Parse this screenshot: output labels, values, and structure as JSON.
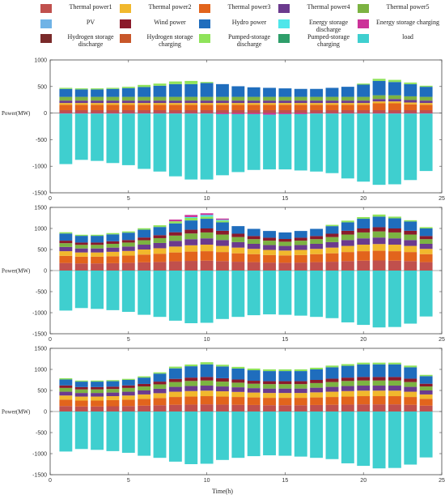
{
  "legend": [
    {
      "label": "Thermal power1",
      "color": "#c0504d"
    },
    {
      "label": "Thermal power2",
      "color": "#f1b82d"
    },
    {
      "label": "Thermal power3",
      "color": "#e2641c"
    },
    {
      "label": "Thermal power4",
      "color": "#6b3a8e"
    },
    {
      "label": "Thermal power5",
      "color": "#7cb342"
    },
    {
      "label": "PV",
      "color": "#6fb3e6"
    },
    {
      "label": "Wind power",
      "color": "#8b1a2b"
    },
    {
      "label": "Hydro power",
      "color": "#1f6dbd"
    },
    {
      "label": "Energy storage discharge",
      "color": "#4ee6ea"
    },
    {
      "label": "Energy storage charging",
      "color": "#cc3399"
    },
    {
      "label": "Hydrogen storage discharge",
      "color": "#7a2a2a"
    },
    {
      "label": "Hydrogen storage charging",
      "color": "#c8572a"
    },
    {
      "label": "Pumped-storage discharge",
      "color": "#8fe35a"
    },
    {
      "label": "Pumped-storage charging",
      "color": "#2e9e6a"
    },
    {
      "label": "load",
      "color": "#3fcfcf"
    }
  ],
  "xlabel": "Time(h)",
  "chart_data": [
    {
      "type": "bar",
      "title": "",
      "ylabel": "Power(MW)",
      "xlabel": "",
      "ylim": [
        -1500,
        1000
      ],
      "yticks": [
        -1500,
        -1000,
        -500,
        0,
        500,
        1000
      ],
      "xlim": [
        0,
        25
      ],
      "xticks": [
        0,
        5,
        10,
        15,
        20,
        25
      ],
      "hours": [
        1,
        2,
        3,
        4,
        5,
        6,
        7,
        8,
        9,
        10,
        11,
        12,
        13,
        14,
        15,
        16,
        17,
        18,
        19,
        20,
        21,
        22,
        23,
        24
      ],
      "series": [
        {
          "name": "Thermal power1",
          "values": [
            55,
            55,
            55,
            55,
            55,
            55,
            55,
            55,
            55,
            55,
            55,
            55,
            55,
            55,
            55,
            55,
            55,
            55,
            55,
            55,
            55,
            55,
            55,
            55
          ]
        },
        {
          "name": "Thermal power3",
          "values": [
            100,
            100,
            100,
            100,
            100,
            100,
            100,
            100,
            100,
            100,
            100,
            100,
            100,
            100,
            100,
            100,
            100,
            100,
            100,
            100,
            130,
            130,
            110,
            100
          ]
        },
        {
          "name": "Thermal power2",
          "values": [
            35,
            35,
            35,
            35,
            35,
            35,
            35,
            35,
            35,
            35,
            35,
            35,
            35,
            35,
            35,
            35,
            35,
            35,
            35,
            35,
            35,
            35,
            35,
            35
          ]
        },
        {
          "name": "Thermal power4",
          "values": [
            45,
            45,
            45,
            45,
            45,
            45,
            45,
            45,
            45,
            45,
            45,
            45,
            45,
            45,
            45,
            45,
            45,
            45,
            45,
            45,
            45,
            45,
            45,
            45
          ]
        },
        {
          "name": "Thermal power5",
          "values": [
            70,
            70,
            70,
            70,
            70,
            70,
            70,
            70,
            70,
            70,
            70,
            70,
            70,
            70,
            70,
            70,
            70,
            70,
            70,
            70,
            70,
            70,
            70,
            70
          ]
        },
        {
          "name": "Hydro power",
          "values": [
            150,
            140,
            140,
            150,
            165,
            185,
            210,
            240,
            240,
            260,
            240,
            200,
            180,
            170,
            160,
            150,
            150,
            170,
            190,
            230,
            270,
            250,
            230,
            190
          ]
        },
        {
          "name": "Pumped-storage discharge",
          "values": [
            20,
            20,
            20,
            20,
            25,
            40,
            40,
            50,
            60,
            20,
            0,
            0,
            0,
            0,
            0,
            0,
            0,
            0,
            0,
            20,
            40,
            40,
            30,
            20
          ]
        },
        {
          "name": "Energy storage charging",
          "values": [
            -10,
            -10,
            -10,
            -10,
            -10,
            -10,
            -10,
            -10,
            -10,
            -10,
            -20,
            -20,
            -20,
            -30,
            -20,
            -20,
            -10,
            -10,
            -10,
            -10,
            -10,
            -10,
            -10,
            -10
          ]
        },
        {
          "name": "load",
          "values": [
            -950,
            -870,
            -890,
            -930,
            -970,
            -1040,
            -1090,
            -1180,
            -1240,
            -1240,
            -1150,
            -1090,
            -1050,
            -1030,
            -1040,
            -1060,
            -1090,
            -1120,
            -1220,
            -1280,
            -1340,
            -1330,
            -1250,
            -1080
          ]
        }
      ]
    },
    {
      "type": "bar",
      "title": "",
      "ylabel": "Power(MW)",
      "xlabel": "",
      "ylim": [
        -1500,
        1500
      ],
      "yticks": [
        -1500,
        -1000,
        -500,
        0,
        500,
        1000,
        1500
      ],
      "xlim": [
        0,
        25
      ],
      "xticks": [
        0,
        5,
        10,
        15,
        20,
        25
      ],
      "hours": [
        1,
        2,
        3,
        4,
        5,
        6,
        7,
        8,
        9,
        10,
        11,
        12,
        13,
        14,
        15,
        16,
        17,
        18,
        19,
        20,
        21,
        22,
        23,
        24
      ],
      "series": [
        {
          "name": "Thermal power1",
          "values": [
            180,
            170,
            170,
            175,
            185,
            195,
            205,
            220,
            230,
            235,
            225,
            210,
            200,
            190,
            185,
            190,
            200,
            210,
            225,
            235,
            240,
            235,
            225,
            200
          ]
        },
        {
          "name": "Thermal power3",
          "values": [
            170,
            160,
            160,
            165,
            170,
            185,
            195,
            210,
            220,
            225,
            215,
            200,
            190,
            180,
            175,
            180,
            190,
            200,
            215,
            225,
            230,
            225,
            215,
            190
          ]
        },
        {
          "name": "Thermal power2",
          "values": [
            110,
            100,
            100,
            105,
            110,
            120,
            130,
            140,
            150,
            155,
            145,
            135,
            125,
            120,
            115,
            120,
            125,
            135,
            145,
            155,
            160,
            155,
            145,
            125
          ]
        },
        {
          "name": "Thermal power4",
          "values": [
            100,
            95,
            95,
            100,
            105,
            115,
            125,
            135,
            145,
            150,
            140,
            130,
            120,
            115,
            110,
            115,
            120,
            130,
            140,
            150,
            155,
            150,
            140,
            120
          ]
        },
        {
          "name": "Thermal power5",
          "values": [
            90,
            85,
            85,
            90,
            95,
            105,
            115,
            125,
            135,
            140,
            130,
            120,
            110,
            105,
            100,
            105,
            110,
            120,
            130,
            140,
            145,
            140,
            130,
            110
          ]
        },
        {
          "name": "Wind power",
          "values": [
            60,
            55,
            55,
            60,
            60,
            65,
            70,
            80,
            90,
            95,
            90,
            80,
            75,
            70,
            65,
            70,
            75,
            80,
            90,
            95,
            100,
            95,
            90,
            75
          ]
        },
        {
          "name": "Hydro power",
          "values": [
            170,
            160,
            160,
            165,
            175,
            185,
            195,
            210,
            220,
            230,
            200,
            180,
            170,
            160,
            155,
            160,
            170,
            180,
            200,
            230,
            250,
            240,
            220,
            180
          ]
        },
        {
          "name": "Pumped-storage discharge",
          "values": [
            30,
            25,
            25,
            30,
            30,
            35,
            40,
            50,
            60,
            50,
            40,
            0,
            0,
            0,
            0,
            0,
            0,
            30,
            40,
            40,
            50,
            40,
            30,
            30
          ]
        },
        {
          "name": "Energy storage discharge",
          "values": [
            0,
            0,
            0,
            0,
            0,
            0,
            0,
            0,
            20,
            40,
            20,
            0,
            0,
            0,
            0,
            0,
            0,
            0,
            0,
            0,
            0,
            0,
            0,
            0
          ]
        },
        {
          "name": "Energy storage charging",
          "values": [
            0,
            0,
            0,
            0,
            0,
            0,
            0,
            40,
            50,
            40,
            30,
            0,
            0,
            0,
            0,
            0,
            0,
            0,
            0,
            0,
            0,
            0,
            0,
            0
          ]
        },
        {
          "name": "load",
          "values": [
            -950,
            -890,
            -910,
            -940,
            -980,
            -1050,
            -1100,
            -1190,
            -1250,
            -1240,
            -1150,
            -1100,
            -1060,
            -1040,
            -1050,
            -1070,
            -1100,
            -1130,
            -1230,
            -1290,
            -1350,
            -1340,
            -1260,
            -1090
          ]
        }
      ]
    },
    {
      "type": "bar",
      "title": "",
      "ylabel": "Power(MW)",
      "xlabel": "",
      "ylim": [
        -1500,
        1500
      ],
      "yticks": [
        -1500,
        -1000,
        -500,
        0,
        500,
        1000,
        1500
      ],
      "xlim": [
        0,
        25
      ],
      "xticks": [
        0,
        5,
        10,
        15,
        20,
        25
      ],
      "hours": [
        1,
        2,
        3,
        4,
        5,
        6,
        7,
        8,
        9,
        10,
        11,
        12,
        13,
        14,
        15,
        16,
        17,
        18,
        19,
        20,
        21,
        22,
        23,
        24
      ],
      "series": [
        {
          "name": "Thermal power1",
          "values": [
            130,
            120,
            120,
            125,
            130,
            140,
            150,
            160,
            165,
            170,
            165,
            160,
            155,
            150,
            150,
            150,
            155,
            160,
            165,
            170,
            170,
            170,
            160,
            140
          ]
        },
        {
          "name": "Thermal power3",
          "values": [
            150,
            140,
            140,
            145,
            150,
            160,
            170,
            185,
            190,
            195,
            190,
            185,
            180,
            175,
            175,
            175,
            180,
            185,
            190,
            195,
            195,
            195,
            185,
            160
          ]
        },
        {
          "name": "Thermal power2",
          "values": [
            100,
            95,
            95,
            95,
            100,
            105,
            115,
            125,
            130,
            130,
            125,
            120,
            115,
            115,
            115,
            115,
            120,
            125,
            130,
            130,
            130,
            130,
            125,
            105
          ]
        },
        {
          "name": "Thermal power4",
          "values": [
            90,
            85,
            85,
            85,
            90,
            95,
            105,
            115,
            120,
            120,
            115,
            110,
            105,
            105,
            105,
            105,
            110,
            115,
            120,
            120,
            120,
            120,
            115,
            95
          ]
        },
        {
          "name": "Thermal power5",
          "values": [
            90,
            85,
            85,
            85,
            90,
            95,
            105,
            115,
            120,
            120,
            115,
            110,
            105,
            105,
            105,
            105,
            110,
            115,
            120,
            120,
            120,
            120,
            115,
            95
          ]
        },
        {
          "name": "Wind power",
          "values": [
            60,
            55,
            55,
            55,
            60,
            60,
            65,
            75,
            80,
            85,
            80,
            75,
            70,
            70,
            70,
            70,
            75,
            80,
            80,
            85,
            85,
            85,
            80,
            65
          ]
        },
        {
          "name": "Hydro power",
          "values": [
            140,
            130,
            130,
            130,
            130,
            150,
            190,
            250,
            270,
            300,
            280,
            260,
            250,
            240,
            240,
            240,
            250,
            270,
            280,
            300,
            300,
            300,
            270,
            180
          ]
        },
        {
          "name": "Pumped-storage discharge",
          "values": [
            30,
            25,
            25,
            25,
            25,
            30,
            30,
            40,
            40,
            50,
            40,
            40,
            40,
            40,
            40,
            40,
            40,
            40,
            40,
            40,
            40,
            40,
            40,
            30
          ]
        },
        {
          "name": "load",
          "values": [
            -950,
            -890,
            -910,
            -940,
            -980,
            -1050,
            -1100,
            -1190,
            -1250,
            -1240,
            -1150,
            -1100,
            -1060,
            -1040,
            -1050,
            -1070,
            -1100,
            -1130,
            -1230,
            -1290,
            -1350,
            -1340,
            -1260,
            -1090
          ]
        }
      ]
    }
  ]
}
